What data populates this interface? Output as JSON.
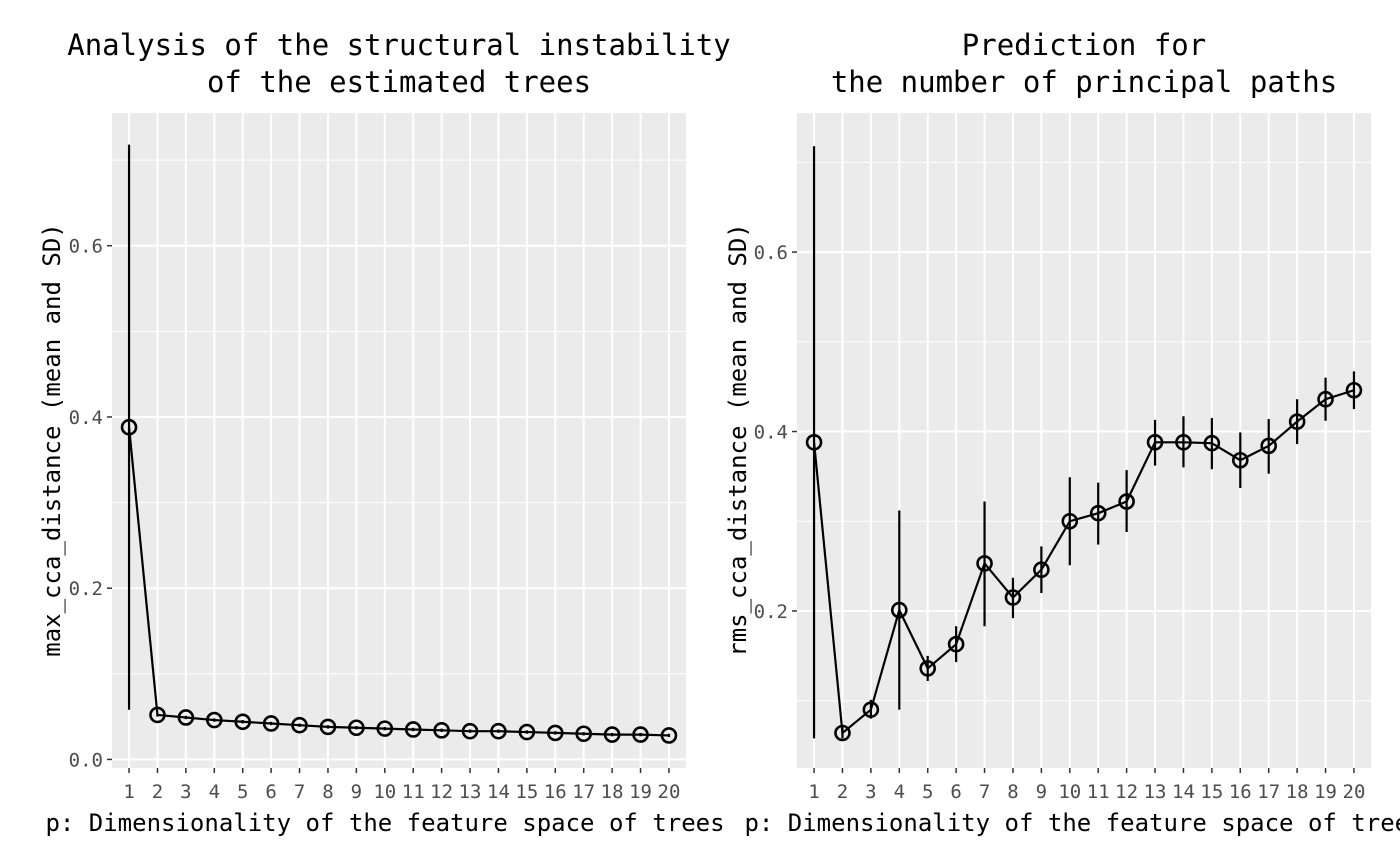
{
  "chart_data": [
    {
      "type": "line",
      "title_lines": [
        "Analysis of the structural instability",
        "of the estimated trees"
      ],
      "xlabel": "p: Dimensionality of the feature space of trees",
      "ylabel": "max_cca_distance (mean and SD)",
      "x": [
        1,
        2,
        3,
        4,
        5,
        6,
        7,
        8,
        9,
        10,
        11,
        12,
        13,
        14,
        15,
        16,
        17,
        18,
        19,
        20
      ],
      "xticks": [
        "1",
        "2",
        "3",
        "4",
        "5",
        "6",
        "7",
        "8",
        "9",
        "10",
        "11",
        "12",
        "13",
        "14",
        "15",
        "16",
        "17",
        "18",
        "19",
        "20"
      ],
      "yticks": [
        0.0,
        0.2,
        0.4,
        0.6
      ],
      "ytick_labels": [
        "0.0",
        "0.2",
        "0.4",
        "0.6"
      ],
      "ylim": [
        -0.01,
        0.755
      ],
      "grid": true,
      "series": [
        {
          "values": [
            0.388,
            0.052,
            0.049,
            0.046,
            0.044,
            0.042,
            0.04,
            0.038,
            0.037,
            0.036,
            0.035,
            0.034,
            0.033,
            0.033,
            0.032,
            0.031,
            0.03,
            0.029,
            0.029,
            0.028
          ],
          "err_low": [
            0.058,
            0.05,
            0.047,
            0.044,
            0.042,
            0.04,
            0.038,
            0.036,
            0.035,
            0.034,
            0.033,
            0.032,
            0.031,
            0.031,
            0.03,
            0.029,
            0.028,
            0.027,
            0.027,
            0.026
          ],
          "err_high": [
            0.718,
            0.054,
            0.051,
            0.048,
            0.046,
            0.044,
            0.042,
            0.04,
            0.039,
            0.038,
            0.037,
            0.036,
            0.035,
            0.035,
            0.034,
            0.033,
            0.032,
            0.031,
            0.031,
            0.03
          ]
        }
      ]
    },
    {
      "type": "line",
      "title_lines": [
        "Prediction for",
        "the number of principal paths"
      ],
      "xlabel": "p: Dimensionality of the feature space of trees",
      "ylabel": "rms_cca_distance (mean and SD)",
      "x": [
        1,
        2,
        3,
        4,
        5,
        6,
        7,
        8,
        9,
        10,
        11,
        12,
        13,
        14,
        15,
        16,
        17,
        18,
        19,
        20
      ],
      "xticks": [
        "1",
        "2",
        "3",
        "4",
        "5",
        "6",
        "7",
        "8",
        "9",
        "10",
        "11",
        "12",
        "13",
        "14",
        "15",
        "16",
        "17",
        "18",
        "19",
        "20"
      ],
      "yticks": [
        0.2,
        0.4,
        0.6
      ],
      "ytick_labels": [
        "0.2",
        "0.4",
        "0.6"
      ],
      "ylim": [
        0.025,
        0.755
      ],
      "grid": true,
      "series": [
        {
          "values": [
            0.388,
            0.064,
            0.09,
            0.201,
            0.136,
            0.163,
            0.253,
            0.215,
            0.246,
            0.3,
            0.309,
            0.322,
            0.388,
            0.388,
            0.387,
            0.368,
            0.384,
            0.411,
            0.436,
            0.446
          ],
          "err_low": [
            0.058,
            0.058,
            0.08,
            0.09,
            0.122,
            0.143,
            0.183,
            0.192,
            0.22,
            0.251,
            0.274,
            0.288,
            0.362,
            0.36,
            0.358,
            0.337,
            0.353,
            0.386,
            0.412,
            0.425
          ],
          "err_high": [
            0.718,
            0.07,
            0.101,
            0.312,
            0.15,
            0.183,
            0.322,
            0.237,
            0.272,
            0.349,
            0.343,
            0.357,
            0.413,
            0.417,
            0.415,
            0.399,
            0.414,
            0.436,
            0.46,
            0.467
          ]
        }
      ]
    }
  ]
}
